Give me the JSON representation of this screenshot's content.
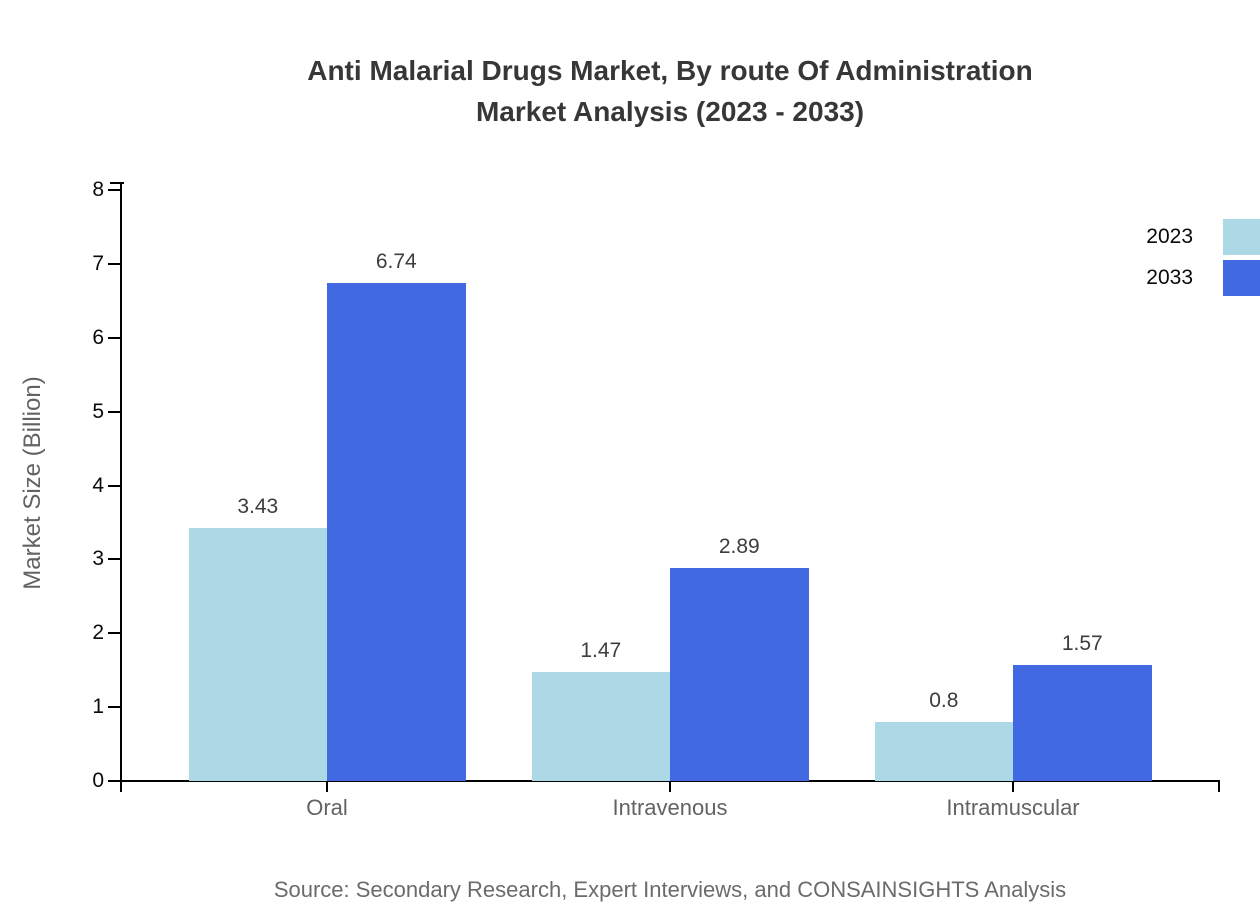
{
  "title": {
    "line1": "Anti Malarial Drugs Market, By route Of Administration",
    "line2": "Market Analysis (2023 - 2033)"
  },
  "source": "Source: Secondary Research, Expert Interviews, and CONSAINSIGHTS Analysis",
  "chart_data": {
    "type": "bar",
    "categories": [
      "Oral",
      "Intravenous",
      "Intramuscular"
    ],
    "series": [
      {
        "name": "2023",
        "color": "#add8e6",
        "values": [
          3.43,
          1.47,
          0.8
        ]
      },
      {
        "name": "2033",
        "color": "#4169e1",
        "values": [
          6.74,
          2.89,
          1.57
        ]
      }
    ],
    "value_labels": [
      "3.43",
      "6.74",
      "1.47",
      "2.89",
      "0.8",
      "1.57"
    ],
    "title": "Anti Malarial Drugs Market, By route Of Administration Market Analysis (2023 - 2033)",
    "xlabel": "",
    "ylabel": "Market Size (Billion)",
    "ylim": [
      0,
      8
    ],
    "yticks": [
      0,
      1,
      2,
      3,
      4,
      5,
      6,
      7,
      8
    ],
    "grid": false,
    "legend_position": "top-right",
    "axis_color": "#000000",
    "label_color": "#3d3d3d",
    "category_color": "#636363",
    "background": "#ffffff"
  }
}
